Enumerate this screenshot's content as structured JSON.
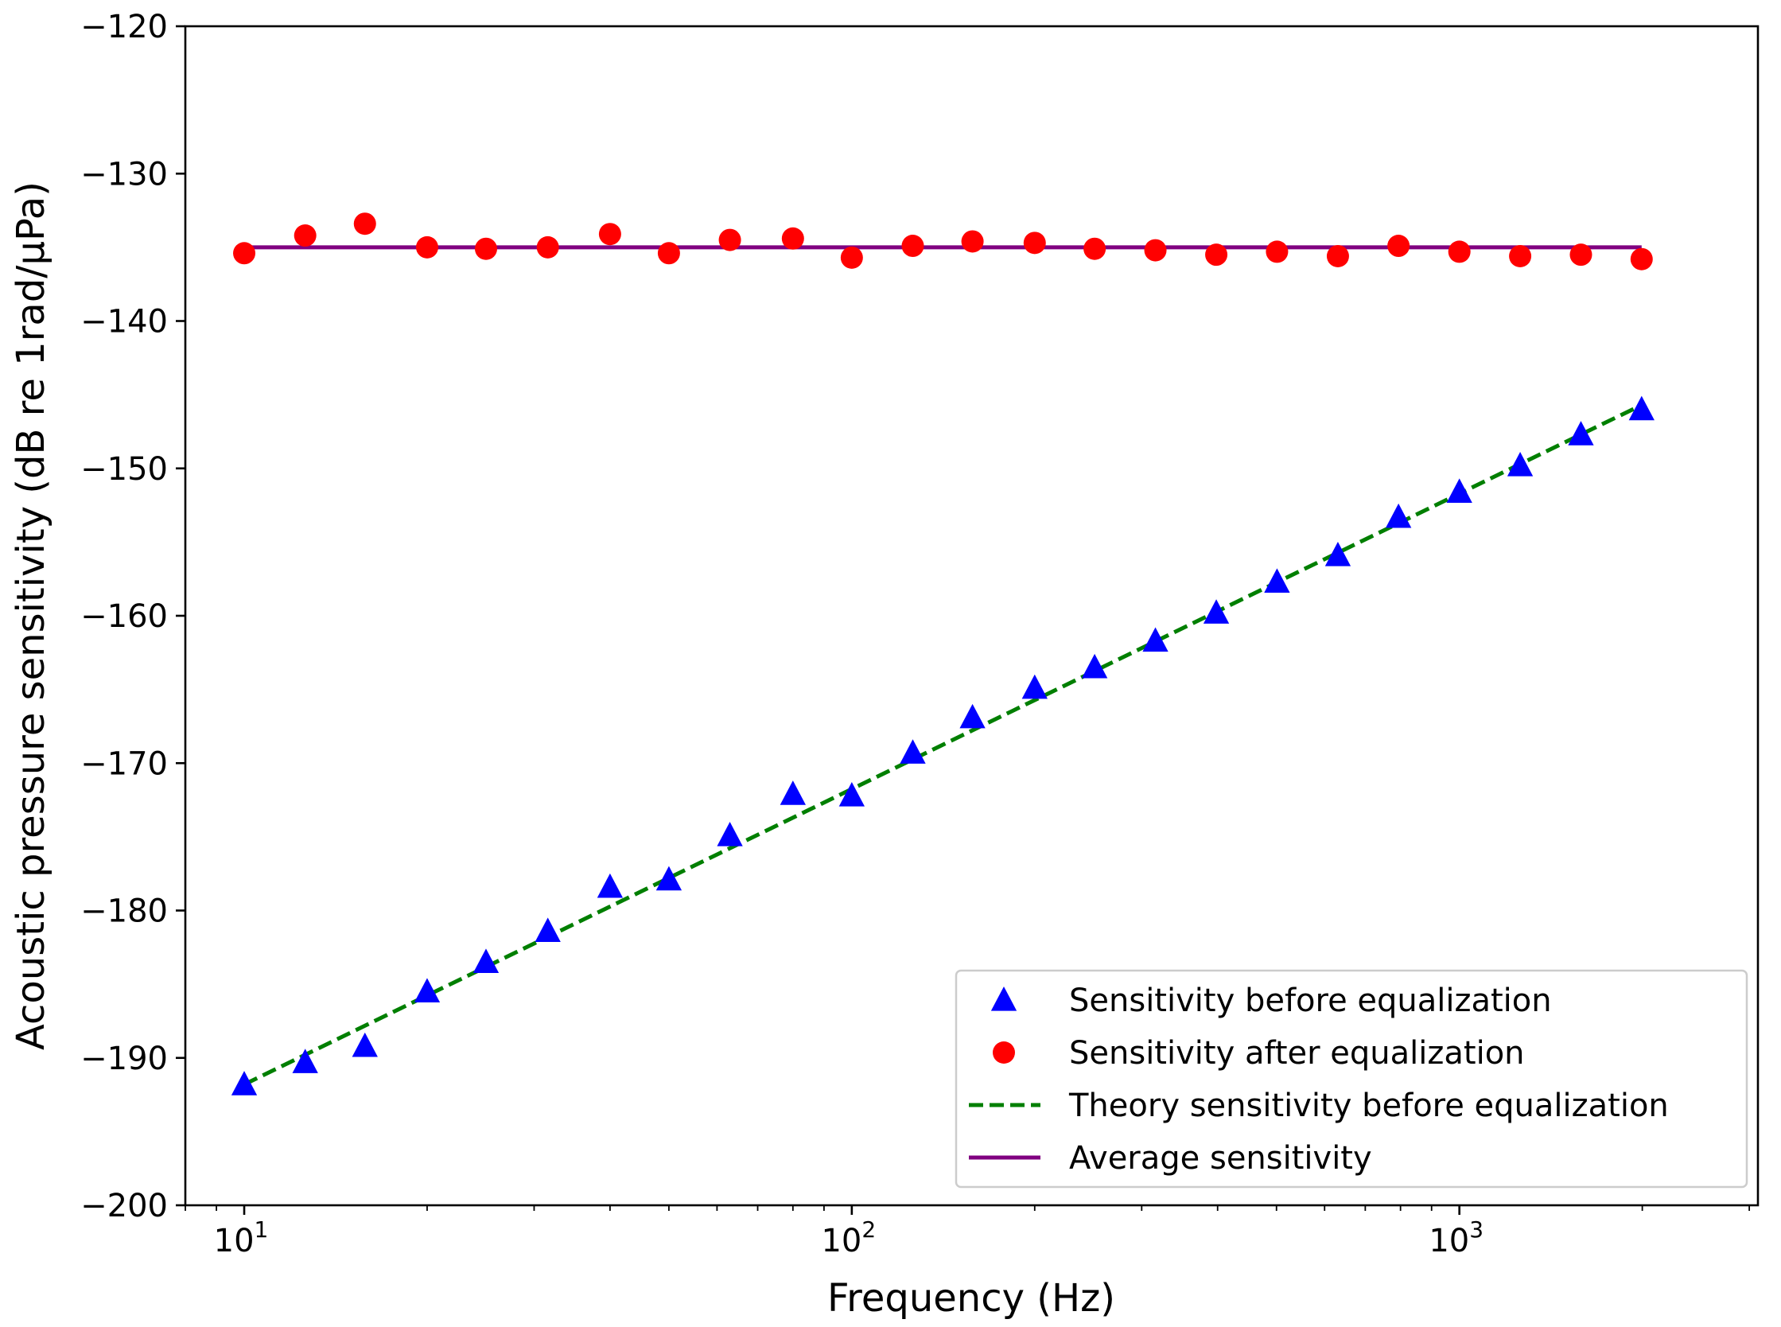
{
  "chart_data": {
    "type": "scatter",
    "xscale": "log",
    "xlabel": "Frequency (Hz)",
    "ylabel": "Acoustic pressure sensitivity (dB re 1rad/µPa)",
    "xlim": [
      8,
      3100
    ],
    "ylim": [
      -200,
      -120
    ],
    "yticks": [
      -120,
      -130,
      -140,
      -150,
      -160,
      -170,
      -180,
      -190,
      -200
    ],
    "ytick_labels": [
      "−120",
      "−130",
      "−140",
      "−150",
      "−160",
      "−170",
      "−180",
      "−190",
      "−200"
    ],
    "xticks": [
      {
        "value": 10,
        "base": "10",
        "exp": "1"
      },
      {
        "value": 100,
        "base": "10",
        "exp": "2"
      },
      {
        "value": 1000,
        "base": "10",
        "exp": "3"
      }
    ],
    "legend_position": "lower right",
    "series": [
      {
        "name": "Sensitivity before equalization",
        "kind": "scatter",
        "marker": "triangle",
        "color": "#0000ff",
        "x": [
          10,
          12.6,
          15.8,
          20,
          25,
          31.6,
          40,
          50,
          63,
          80,
          100,
          126,
          158,
          200,
          251,
          316,
          398,
          501,
          631,
          794,
          1000,
          1259,
          1585,
          1995
        ],
        "y": [
          -191.8,
          -190.3,
          -189.2,
          -185.5,
          -183.5,
          -181.4,
          -178.4,
          -177.9,
          -174.9,
          -172.1,
          -172.2,
          -169.3,
          -166.9,
          -164.9,
          -163.5,
          -161.7,
          -159.8,
          -157.7,
          -155.9,
          -153.3,
          -151.6,
          -149.8,
          -147.7,
          -146.0
        ]
      },
      {
        "name": "Sensitivity after equalization",
        "kind": "scatter",
        "marker": "circle",
        "color": "#ff0000",
        "x": [
          10,
          12.6,
          15.8,
          20,
          25,
          31.6,
          40,
          50,
          63,
          80,
          100,
          126,
          158,
          200,
          251,
          316,
          398,
          501,
          631,
          794,
          1000,
          1259,
          1585,
          1995
        ],
        "y": [
          -135.4,
          -134.2,
          -133.4,
          -135.0,
          -135.1,
          -135.0,
          -134.1,
          -135.4,
          -134.5,
          -134.4,
          -135.7,
          -134.9,
          -134.6,
          -134.7,
          -135.1,
          -135.2,
          -135.5,
          -135.3,
          -135.6,
          -134.9,
          -135.3,
          -135.6,
          -135.5,
          -135.8
        ]
      },
      {
        "name": "Theory sensitivity before equalization",
        "kind": "line",
        "style": "dashed",
        "color": "#007f00",
        "x": [
          10,
          1995
        ],
        "y": [
          -191.8,
          -145.7
        ]
      },
      {
        "name": "Average sensitivity",
        "kind": "line",
        "style": "solid",
        "color": "#800080",
        "x": [
          10,
          1995
        ],
        "y": [
          -135.0,
          -135.0
        ]
      }
    ]
  }
}
